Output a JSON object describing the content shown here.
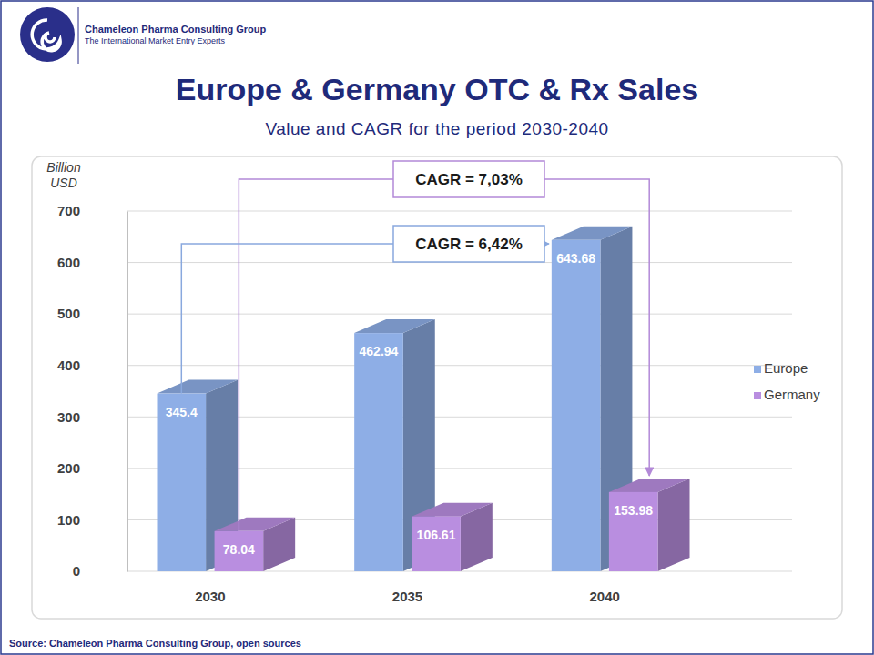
{
  "header": {
    "company": "Chameleon Pharma Consulting Group",
    "tagline": "The International Market Entry Experts"
  },
  "source": "Source: Chameleon Pharma Consulting Group, open sources",
  "chart_data": {
    "type": "bar",
    "title": "Europe & Germany OTC & Rx Sales",
    "subtitle": "Value and CAGR for the period 2030-2040",
    "ylabel": "Billion USD",
    "categories": [
      "2030",
      "2035",
      "2040"
    ],
    "series": [
      {
        "name": "Europe",
        "color": "#8eaee6",
        "values": [
          345.4,
          462.94,
          643.68
        ]
      },
      {
        "name": "Germany",
        "color": "#b98ee0",
        "values": [
          78.04,
          106.61,
          153.98
        ]
      }
    ],
    "ylim": [
      0,
      700
    ],
    "yticks": [
      0,
      100,
      200,
      300,
      400,
      500,
      600,
      700
    ],
    "grid": true,
    "legend": "right",
    "data_labels": true,
    "annotations": [
      {
        "text": "CAGR = 7,03%",
        "series": "Germany"
      },
      {
        "text": "CAGR = 6,42%",
        "series": "Europe"
      }
    ]
  }
}
